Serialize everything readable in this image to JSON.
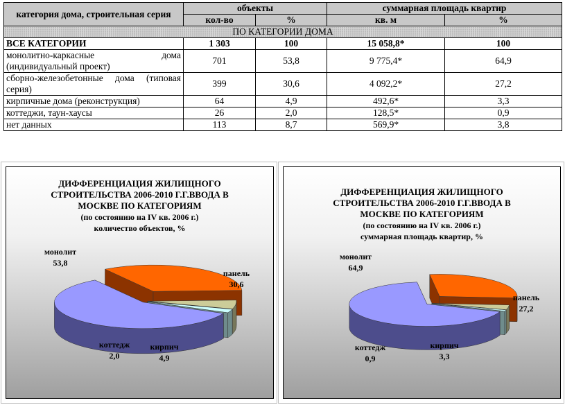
{
  "table": {
    "header": {
      "category": "категория дома, строительная серия",
      "objects": "объекты",
      "area": "суммарная площадь квартир",
      "count": "кол-во",
      "percent": "%",
      "sqm": "кв. м",
      "area_percent": "%"
    },
    "section": "ПО КАТЕГОРИИ ДОМА",
    "total": {
      "label": "ВСЕ КАТЕГОРИИ",
      "count": "1 303",
      "percent": "100",
      "area": "15 058,8*",
      "area_percent": "100"
    },
    "rows": [
      {
        "label": "монолитно-каркасные дома (индивидуальный проект)",
        "count": "701",
        "percent": "53,8",
        "area": "9 775,4*",
        "area_percent": "64,9"
      },
      {
        "label": "сборно-железобетонные дома (типовая серия)",
        "count": "399",
        "percent": "30,6",
        "area": "4 092,2*",
        "area_percent": "27,2"
      },
      {
        "label": "кирпичные дома (реконструкция)",
        "count": "64",
        "percent": "4,9",
        "area": "492,6*",
        "area_percent": "3,3"
      },
      {
        "label": "коттеджи, таун-хаусы",
        "count": "26",
        "percent": "2,0",
        "area": "128,5*",
        "area_percent": "0,9"
      },
      {
        "label": "нет данных",
        "count": "113",
        "percent": "8,7",
        "area": "569,9*",
        "area_percent": "3,8"
      }
    ]
  },
  "chart_data": [
    {
      "type": "pie",
      "title_lines": [
        "ДИФФЕРЕНЦИАЦИЯ ЖИЛИЩНОГО",
        "СТРОИТЕЛЬСТВА 2006-2010 Г.Г.ВВОДА В",
        "МОСКВЕ ПО КАТЕГОРИЯМ"
      ],
      "subtitle_lines": [
        "(по состоянию на IV кв. 2006 г.)",
        "количество объектов, %"
      ],
      "slices": [
        {
          "name": "монолит",
          "value": 53.8,
          "label": "53,8",
          "color": "#9999ff",
          "side": "#4d4d8c"
        },
        {
          "name": "панель",
          "value": 30.6,
          "label": "30,6",
          "color": "#ff6600",
          "side": "#8c3300"
        },
        {
          "name": "кирпич",
          "value": 4.9,
          "label": "4,9",
          "color": "#cccc99",
          "side": "#77775a"
        },
        {
          "name": "коттедж",
          "value": 2.0,
          "label": "2,0",
          "color": "#ccffff",
          "side": "#6f8c8c"
        }
      ]
    },
    {
      "type": "pie",
      "title_lines": [
        "ДИФФЕРЕНЦИАЦИЯ ЖИЛИЩНОГО",
        "СТРОИТЕЛЬСТВА 2006-2010 Г.Г.ВВОДА В",
        "МОСКВЕ ПО КАТЕГОРИЯМ"
      ],
      "subtitle_lines": [
        "(по состоянию на IV кв. 2006 г.)",
        "суммарная площадь квартир, %"
      ],
      "slices": [
        {
          "name": "монолит",
          "value": 64.9,
          "label": "64,9",
          "color": "#9999ff",
          "side": "#4d4d8c"
        },
        {
          "name": "панель",
          "value": 27.2,
          "label": "27,2",
          "color": "#ff6600",
          "side": "#8c3300"
        },
        {
          "name": "кирпич",
          "value": 3.3,
          "label": "3,3",
          "color": "#cccc99",
          "side": "#77775a"
        },
        {
          "name": "коттедж",
          "value": 0.9,
          "label": "0,9",
          "color": "#ccffff",
          "side": "#6f8c8c"
        }
      ]
    }
  ]
}
